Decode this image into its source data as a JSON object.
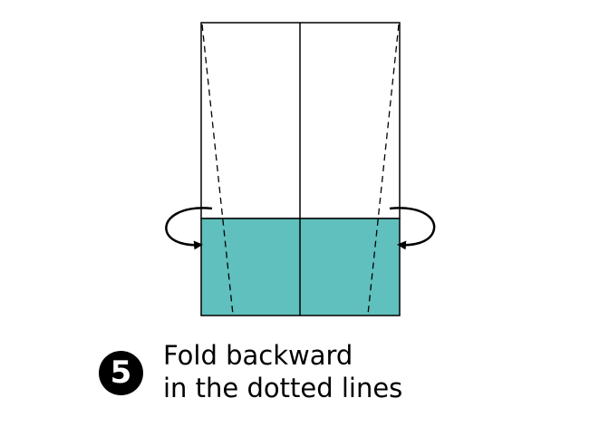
{
  "step": {
    "number": "5",
    "instruction_line1": "Fold backward",
    "instruction_line2": "in the dotted lines"
  },
  "colors": {
    "paper_front": "#ffffff",
    "paper_colored": "#5fc0bd",
    "line": "#000000"
  },
  "icons": {
    "left_arrow": "curved-arrow-fold-backward-left",
    "right_arrow": "curved-arrow-fold-backward-right"
  }
}
